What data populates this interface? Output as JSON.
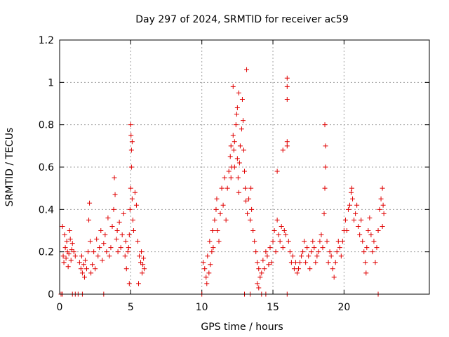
{
  "chart_data": {
    "type": "scatter",
    "title": "Day 297 of 2024, SRMTID for receiver ac59",
    "xlabel": "GPS time / hours",
    "ylabel": "SRMTID / TECUs",
    "xlim": [
      0,
      26
    ],
    "ylim": [
      0,
      1.2
    ],
    "xticks": [
      0,
      5,
      10,
      15,
      20
    ],
    "xtick_labels": [
      "0",
      "5",
      "10",
      "15",
      "20"
    ],
    "yticks": [
      0,
      0.2,
      0.4,
      0.6,
      0.8,
      1,
      1.2
    ],
    "ytick_labels": [
      "0",
      "0.2",
      "0.4",
      "0.6",
      "0.8",
      "1",
      "1.2"
    ],
    "grid": true,
    "marker": "plus",
    "color": "#e00000",
    "series": [
      {
        "name": "SRMTID",
        "points": [
          [
            0.1,
            0.0
          ],
          [
            0.2,
            0.0
          ],
          [
            0.9,
            0.0
          ],
          [
            1.1,
            0.0
          ],
          [
            1.3,
            0.0
          ],
          [
            1.6,
            0.0
          ],
          [
            3.1,
            0.0
          ],
          [
            10.0,
            0.0
          ],
          [
            13.0,
            0.0
          ],
          [
            13.4,
            0.0
          ],
          [
            14.2,
            0.0
          ],
          [
            14.5,
            0.0
          ],
          [
            16.0,
            0.0
          ],
          [
            22.4,
            0.0
          ],
          [
            0.2,
            0.32
          ],
          [
            0.25,
            0.18
          ],
          [
            0.3,
            0.15
          ],
          [
            0.35,
            0.28
          ],
          [
            0.4,
            0.22
          ],
          [
            0.45,
            0.17
          ],
          [
            0.5,
            0.25
          ],
          [
            0.55,
            0.2
          ],
          [
            0.6,
            0.13
          ],
          [
            0.65,
            0.19
          ],
          [
            0.7,
            0.3
          ],
          [
            0.75,
            0.26
          ],
          [
            0.8,
            0.16
          ],
          [
            0.85,
            0.21
          ],
          [
            0.9,
            0.24
          ],
          [
            1.0,
            0.2
          ],
          [
            1.1,
            0.18
          ],
          [
            1.4,
            0.15
          ],
          [
            1.5,
            0.12
          ],
          [
            1.55,
            0.18
          ],
          [
            1.6,
            0.1
          ],
          [
            1.7,
            0.14
          ],
          [
            1.75,
            0.08
          ],
          [
            1.8,
            0.16
          ],
          [
            1.9,
            0.12
          ],
          [
            2.0,
            0.2
          ],
          [
            2.05,
            0.35
          ],
          [
            2.1,
            0.43
          ],
          [
            2.15,
            0.25
          ],
          [
            2.2,
            0.1
          ],
          [
            2.3,
            0.14
          ],
          [
            2.4,
            0.2
          ],
          [
            2.5,
            0.12
          ],
          [
            2.6,
            0.26
          ],
          [
            2.7,
            0.18
          ],
          [
            2.8,
            0.22
          ],
          [
            2.9,
            0.3
          ],
          [
            3.0,
            0.16
          ],
          [
            3.1,
            0.24
          ],
          [
            3.2,
            0.28
          ],
          [
            3.3,
            0.2
          ],
          [
            3.4,
            0.36
          ],
          [
            3.5,
            0.18
          ],
          [
            3.6,
            0.22
          ],
          [
            3.7,
            0.32
          ],
          [
            3.8,
            0.4
          ],
          [
            3.85,
            0.55
          ],
          [
            3.9,
            0.47
          ],
          [
            4.0,
            0.26
          ],
          [
            4.05,
            0.3
          ],
          [
            4.1,
            0.2
          ],
          [
            4.2,
            0.34
          ],
          [
            4.3,
            0.22
          ],
          [
            4.4,
            0.28
          ],
          [
            4.5,
            0.38
          ],
          [
            4.6,
            0.18
          ],
          [
            4.65,
            0.25
          ],
          [
            4.7,
            0.12
          ],
          [
            4.8,
            0.2
          ],
          [
            4.85,
            0.22
          ],
          [
            4.9,
            0.28
          ],
          [
            4.95,
            0.4
          ],
          [
            5.0,
            0.5
          ],
          [
            5.05,
            0.6
          ],
          [
            5.0,
            0.8
          ],
          [
            5.02,
            0.75
          ],
          [
            5.1,
            0.72
          ],
          [
            5.05,
            0.68
          ],
          [
            5.1,
            0.45
          ],
          [
            5.15,
            0.35
          ],
          [
            5.2,
            0.3
          ],
          [
            5.3,
            0.48
          ],
          [
            5.4,
            0.42
          ],
          [
            5.5,
            0.25
          ],
          [
            5.6,
            0.18
          ],
          [
            5.7,
            0.15
          ],
          [
            5.75,
            0.2
          ],
          [
            5.8,
            0.1
          ],
          [
            5.85,
            0.14
          ],
          [
            5.9,
            0.17
          ],
          [
            5.95,
            0.12
          ],
          [
            4.9,
            0.05
          ],
          [
            5.55,
            0.05
          ],
          [
            10.1,
            0.15
          ],
          [
            10.2,
            0.12
          ],
          [
            10.3,
            0.08
          ],
          [
            10.35,
            0.05
          ],
          [
            10.4,
            0.18
          ],
          [
            10.5,
            0.1
          ],
          [
            10.55,
            0.25
          ],
          [
            10.6,
            0.14
          ],
          [
            10.7,
            0.2
          ],
          [
            10.75,
            0.3
          ],
          [
            10.8,
            0.22
          ],
          [
            10.9,
            0.35
          ],
          [
            11.0,
            0.4
          ],
          [
            11.05,
            0.45
          ],
          [
            11.1,
            0.3
          ],
          [
            11.2,
            0.25
          ],
          [
            11.3,
            0.38
          ],
          [
            11.4,
            0.5
          ],
          [
            11.5,
            0.42
          ],
          [
            11.6,
            0.55
          ],
          [
            11.7,
            0.35
          ],
          [
            11.8,
            0.5
          ],
          [
            11.9,
            0.58
          ],
          [
            12.0,
            0.65
          ],
          [
            12.05,
            0.7
          ],
          [
            12.1,
            0.6
          ],
          [
            12.2,
            0.75
          ],
          [
            12.25,
            0.68
          ],
          [
            12.3,
            0.72
          ],
          [
            12.4,
            0.8
          ],
          [
            12.45,
            0.85
          ],
          [
            12.5,
            0.88
          ],
          [
            12.55,
            0.55
          ],
          [
            12.6,
            0.48
          ],
          [
            12.65,
            0.62
          ],
          [
            12.7,
            0.7
          ],
          [
            12.8,
            0.78
          ],
          [
            12.85,
            0.92
          ],
          [
            12.9,
            0.82
          ],
          [
            12.95,
            0.68
          ],
          [
            13.0,
            0.58
          ],
          [
            13.05,
            0.5
          ],
          [
            13.1,
            0.44
          ],
          [
            13.2,
            0.38
          ],
          [
            13.3,
            0.45
          ],
          [
            13.4,
            0.35
          ],
          [
            13.45,
            0.5
          ],
          [
            13.5,
            0.4
          ],
          [
            13.6,
            0.3
          ],
          [
            13.7,
            0.25
          ],
          [
            13.8,
            0.2
          ],
          [
            13.9,
            0.15
          ],
          [
            14.0,
            0.12
          ],
          [
            14.1,
            0.08
          ],
          [
            14.2,
            0.1
          ],
          [
            14.3,
            0.16
          ],
          [
            14.4,
            0.12
          ],
          [
            14.5,
            0.2
          ],
          [
            14.6,
            0.18
          ],
          [
            14.7,
            0.14
          ],
          [
            14.8,
            0.22
          ],
          [
            14.9,
            0.15
          ],
          [
            13.9,
            0.05
          ],
          [
            14.0,
            0.03
          ],
          [
            12.2,
            0.98
          ],
          [
            12.6,
            0.95
          ],
          [
            13.15,
            1.06
          ],
          [
            12.05,
            0.55
          ],
          [
            12.3,
            0.6
          ],
          [
            12.5,
            0.64
          ],
          [
            15.0,
            0.25
          ],
          [
            15.1,
            0.3
          ],
          [
            15.2,
            0.2
          ],
          [
            15.3,
            0.35
          ],
          [
            15.4,
            0.28
          ],
          [
            15.5,
            0.25
          ],
          [
            15.6,
            0.32
          ],
          [
            15.7,
            0.22
          ],
          [
            15.8,
            0.3
          ],
          [
            15.9,
            0.28
          ],
          [
            16.0,
            0.72
          ],
          [
            16.0,
            0.92
          ],
          [
            16.0,
            0.98
          ],
          [
            16.0,
            1.02
          ],
          [
            16.0,
            0.7
          ],
          [
            16.1,
            0.25
          ],
          [
            16.2,
            0.2
          ],
          [
            16.3,
            0.15
          ],
          [
            16.4,
            0.18
          ],
          [
            16.5,
            0.12
          ],
          [
            16.6,
            0.15
          ],
          [
            16.7,
            0.1
          ],
          [
            16.8,
            0.12
          ],
          [
            16.9,
            0.15
          ],
          [
            17.0,
            0.18
          ],
          [
            17.1,
            0.2
          ],
          [
            17.2,
            0.25
          ],
          [
            17.3,
            0.15
          ],
          [
            17.4,
            0.22
          ],
          [
            17.5,
            0.18
          ],
          [
            17.6,
            0.12
          ],
          [
            17.7,
            0.2
          ],
          [
            17.8,
            0.25
          ],
          [
            17.9,
            0.22
          ],
          [
            18.0,
            0.15
          ],
          [
            18.1,
            0.18
          ],
          [
            18.2,
            0.2
          ],
          [
            18.3,
            0.25
          ],
          [
            18.4,
            0.28
          ],
          [
            18.5,
            0.22
          ],
          [
            18.6,
            0.38
          ],
          [
            18.65,
            0.5
          ],
          [
            18.7,
            0.6
          ],
          [
            18.7,
            0.7
          ],
          [
            18.65,
            0.8
          ],
          [
            18.8,
            0.25
          ],
          [
            18.9,
            0.15
          ],
          [
            19.0,
            0.2
          ],
          [
            19.1,
            0.18
          ],
          [
            19.2,
            0.12
          ],
          [
            19.3,
            0.08
          ],
          [
            19.4,
            0.15
          ],
          [
            19.5,
            0.2
          ],
          [
            19.6,
            0.25
          ],
          [
            19.7,
            0.22
          ],
          [
            19.8,
            0.18
          ],
          [
            19.9,
            0.25
          ],
          [
            20.0,
            0.3
          ],
          [
            20.1,
            0.35
          ],
          [
            20.2,
            0.3
          ],
          [
            20.3,
            0.4
          ],
          [
            20.4,
            0.42
          ],
          [
            20.5,
            0.48
          ],
          [
            20.55,
            0.5
          ],
          [
            20.6,
            0.45
          ],
          [
            20.7,
            0.35
          ],
          [
            20.8,
            0.38
          ],
          [
            20.9,
            0.42
          ],
          [
            21.0,
            0.32
          ],
          [
            21.1,
            0.28
          ],
          [
            21.2,
            0.35
          ],
          [
            21.3,
            0.25
          ],
          [
            21.4,
            0.2
          ],
          [
            21.5,
            0.15
          ],
          [
            21.6,
            0.22
          ],
          [
            21.7,
            0.3
          ],
          [
            21.8,
            0.36
          ],
          [
            21.9,
            0.28
          ],
          [
            22.0,
            0.2
          ],
          [
            22.1,
            0.25
          ],
          [
            22.2,
            0.15
          ],
          [
            22.3,
            0.22
          ],
          [
            22.4,
            0.3
          ],
          [
            22.5,
            0.4
          ],
          [
            22.6,
            0.45
          ],
          [
            22.7,
            0.5
          ],
          [
            22.75,
            0.42
          ],
          [
            22.8,
            0.38
          ],
          [
            22.7,
            0.32
          ],
          [
            21.55,
            0.1
          ],
          [
            15.3,
            0.58
          ],
          [
            15.7,
            0.68
          ]
        ]
      }
    ]
  }
}
